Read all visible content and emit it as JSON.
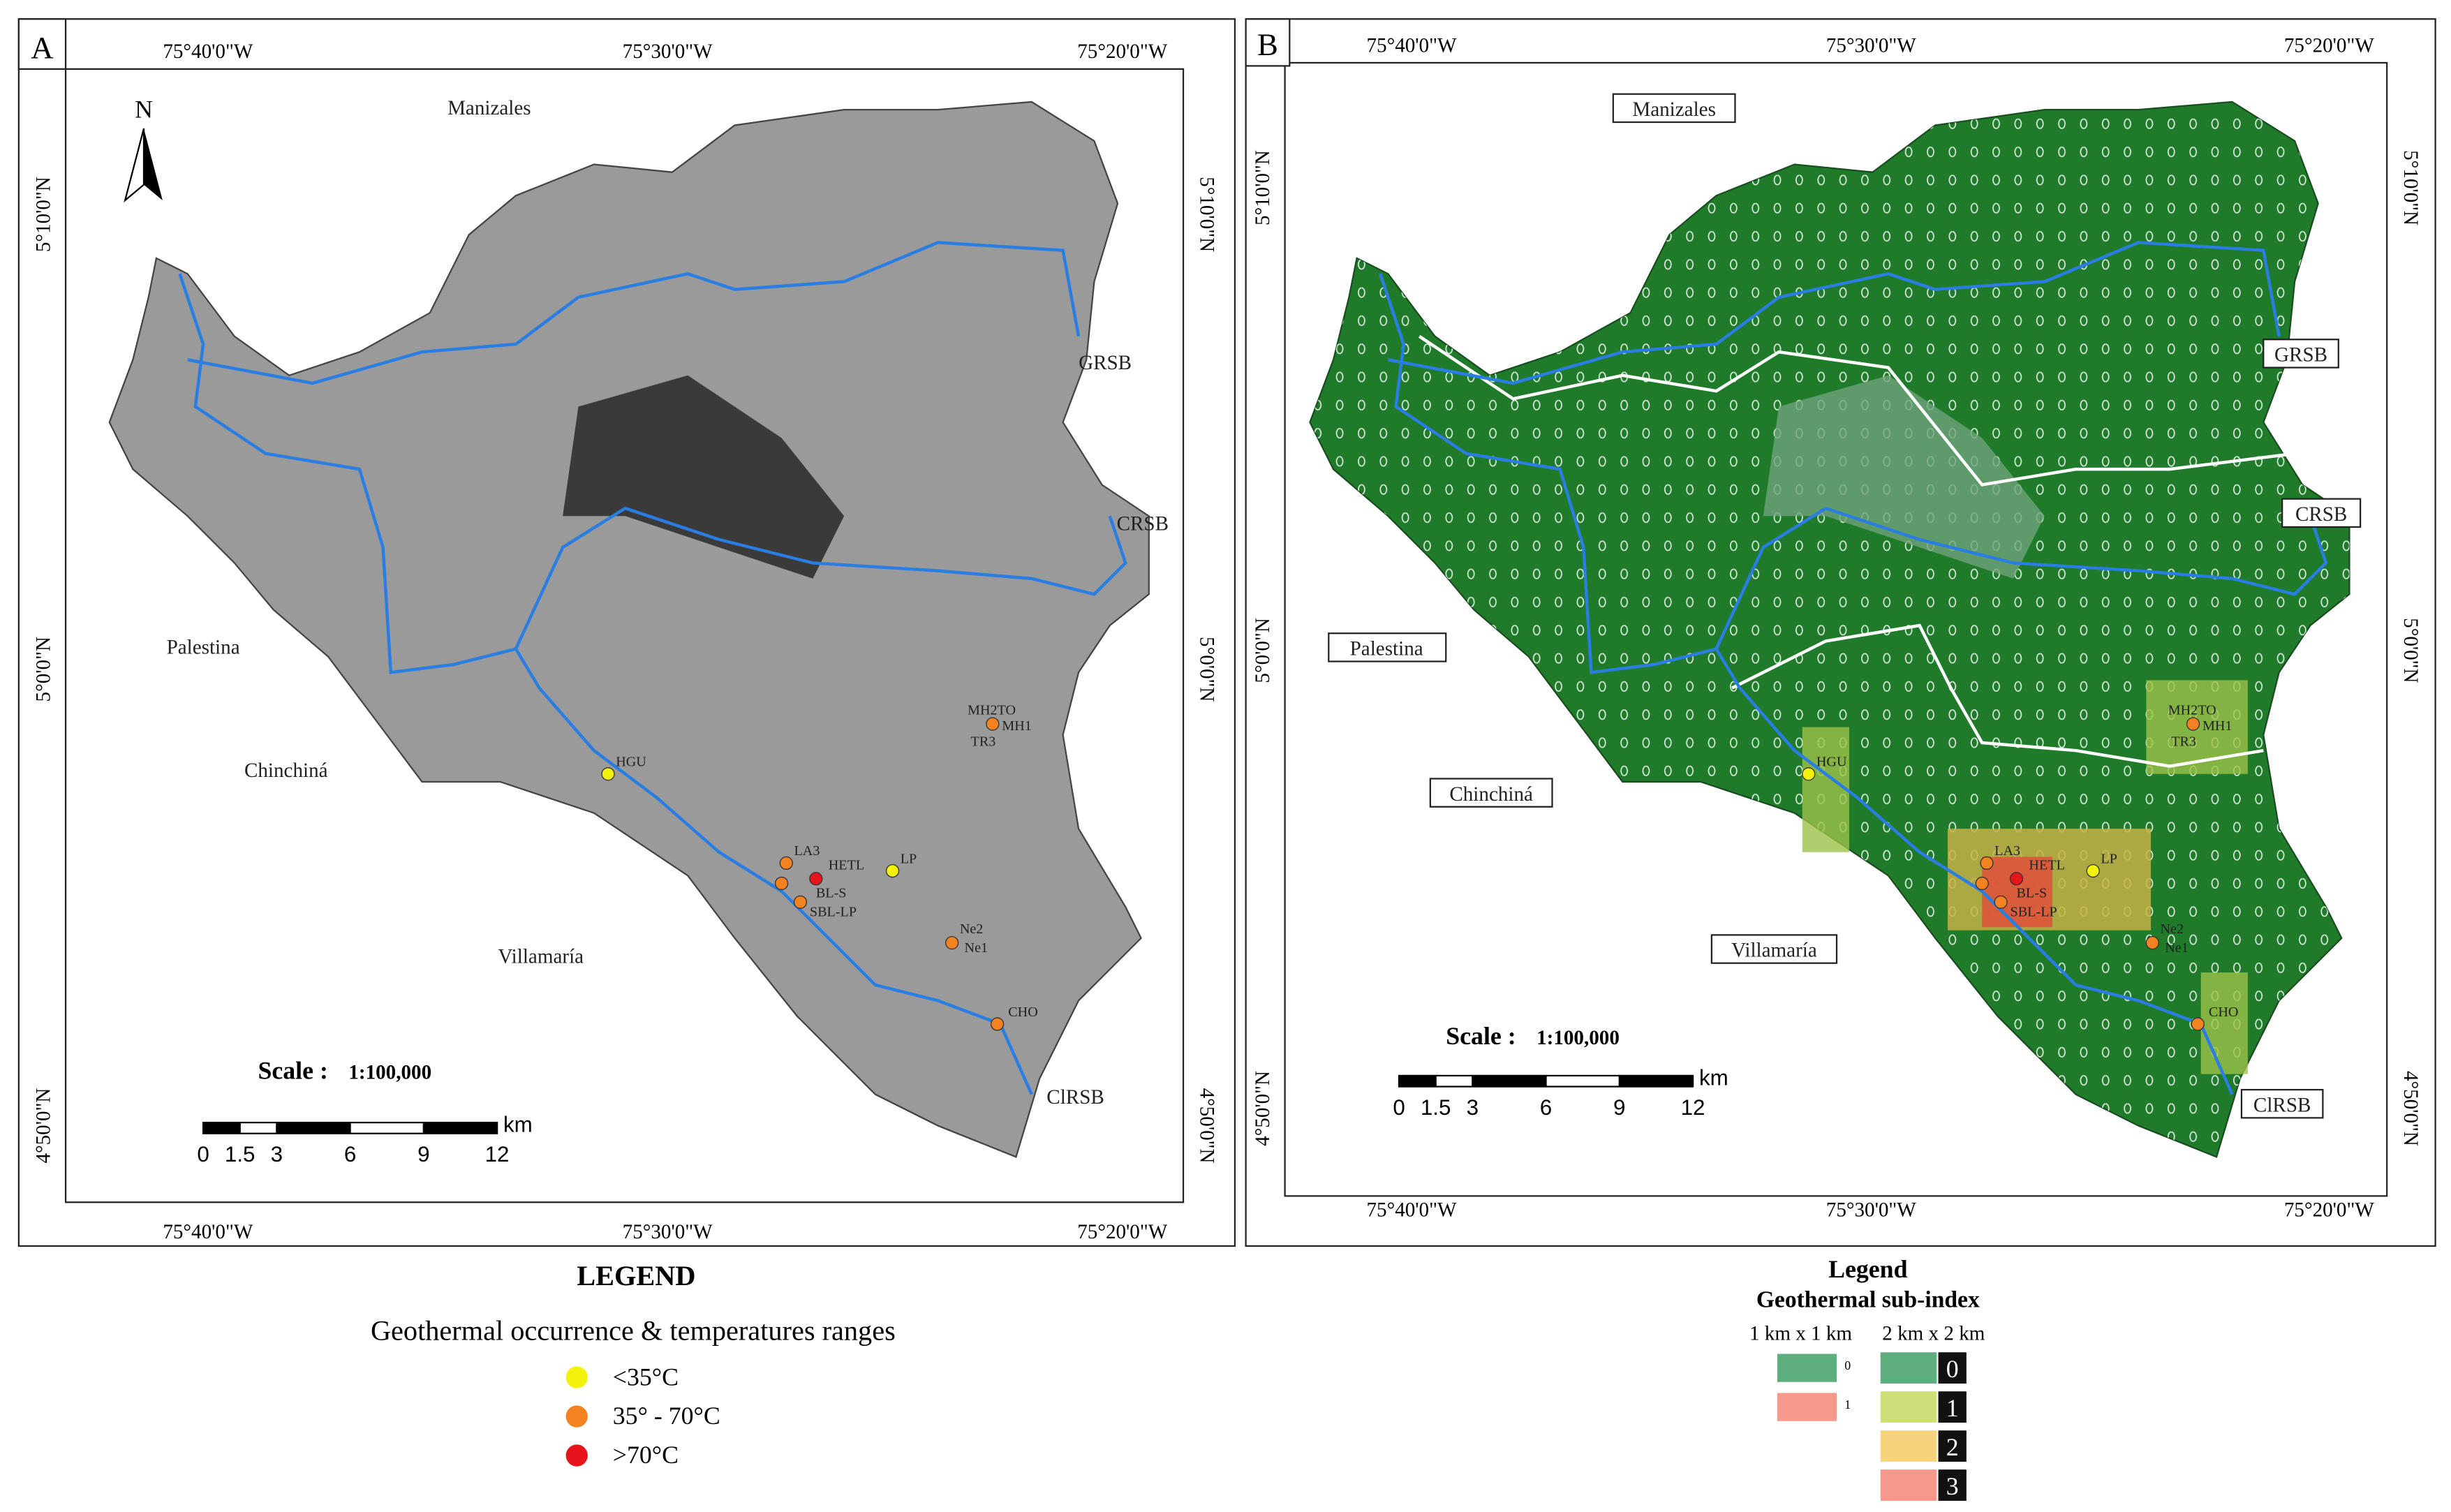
{
  "panels": [
    {
      "label": "A"
    },
    {
      "label": "B"
    }
  ],
  "graticule": {
    "lon": [
      "75°40'0\"W",
      "75°30'0\"W",
      "75°20'0\"W"
    ],
    "lat": [
      "5°10'0\"N",
      "5°0'0\"N",
      "4°50'0\"N"
    ]
  },
  "north": "N",
  "places": [
    "Manizales",
    "Palestina",
    "Chinchiná",
    "Villamaría"
  ],
  "sub_basins": [
    "GRSB",
    "CRSB",
    "ClRSB"
  ],
  "stations": [
    "HGU",
    "LA3",
    "HETL",
    "LP",
    "BL-S",
    "SBL-LP",
    "MH2TO",
    "MH1",
    "TR3",
    "Ne2",
    "Ne1",
    "CHO"
  ],
  "scale": {
    "label": "Scale :",
    "ratio": "1:100,000",
    "ticks": [
      0,
      1.5,
      3,
      6,
      9,
      12
    ],
    "unit": "km"
  },
  "legend_a": {
    "title": "LEGEND",
    "subtitle": "Geothermal occurrence & temperatures ranges",
    "items": [
      {
        "label": "<35°C",
        "color": "#f2f20a"
      },
      {
        "label": "35° - 70°C",
        "color": "#f58220"
      },
      {
        "label": ">70°C",
        "color": "#e8141c"
      }
    ]
  },
  "legend_b": {
    "title": "Legend",
    "subtitle": "Geothermal sub-index",
    "columns": [
      "1 km x 1 km",
      "2 km x 2 km"
    ],
    "fine": [
      {
        "value": 0,
        "color": "#5fae7d"
      },
      {
        "value": 1,
        "color": "#f7998a"
      }
    ],
    "coarse": [
      {
        "value": 0,
        "color": "#5fae7d"
      },
      {
        "value": 1,
        "color": "#cfe07a"
      },
      {
        "value": 2,
        "color": "#f7d47c"
      },
      {
        "value": 3,
        "color": "#f7998a"
      }
    ]
  }
}
